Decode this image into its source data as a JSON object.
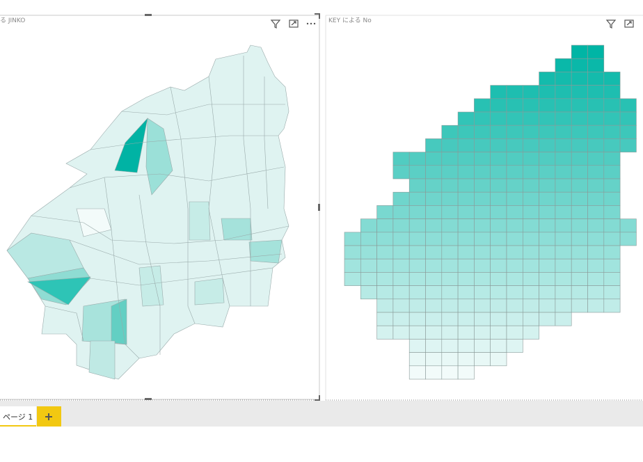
{
  "visuals": [
    {
      "title": "る JINKO"
    },
    {
      "title": "KEY による No"
    }
  ],
  "tabs": [
    {
      "label": "ページ 1"
    }
  ]
}
